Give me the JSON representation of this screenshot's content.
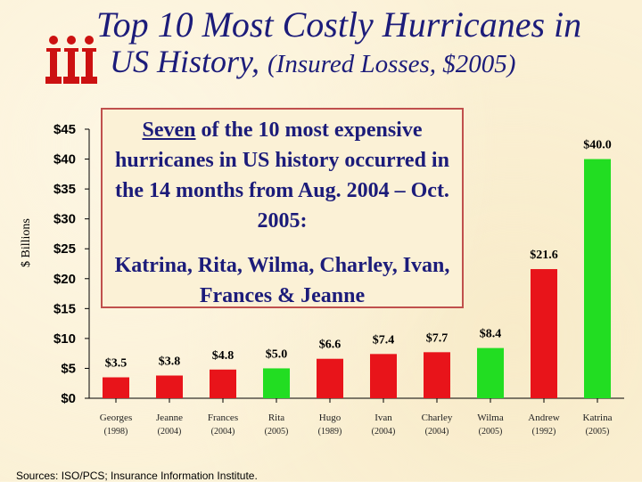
{
  "title": {
    "line1": "Top 10 Most Costly Hurricanes in",
    "line2_main": "US History,",
    "line2_sub": "(Insured Losses, $2005)"
  },
  "callout": {
    "p1_emph": "Seven",
    "p1_rest": " of the 10 most expensive hurricanes in US history occurred in the 14 months from Aug. 2004 – Oct. 2005:",
    "p2": "Katrina, Rita, Wilma, Charley, Ivan, Frances & Jeanne"
  },
  "source": "Sources: ISO/PCS; Insurance Information Institute.",
  "colors": {
    "red": "#e8141a",
    "green": "#22dd22",
    "title": "#1c1c7a",
    "logo": "#cc1111"
  },
  "logo_icon": "iii-logo-icon",
  "chart_data": {
    "type": "bar",
    "ylabel": "$ Billions",
    "ylim": [
      0,
      45
    ],
    "yticks": [
      0,
      5,
      10,
      15,
      20,
      25,
      30,
      35,
      40,
      45
    ],
    "ytick_labels": [
      "$0",
      "$5",
      "$10",
      "$15",
      "$20",
      "$25",
      "$30",
      "$35",
      "$40",
      "$45"
    ],
    "categories": [
      "Georges",
      "Jeanne",
      "Frances",
      "Rita",
      "Hugo",
      "Ivan",
      "Charley",
      "Wilma",
      "Andrew",
      "Katrina"
    ],
    "years": [
      "(1998)",
      "(2004)",
      "(2004)",
      "(2005)",
      "(1989)",
      "(2004)",
      "(2004)",
      "(2005)",
      "(1992)",
      "(2005)"
    ],
    "values": [
      3.5,
      3.8,
      4.8,
      5.0,
      6.6,
      7.4,
      7.7,
      8.4,
      21.6,
      40.0
    ],
    "value_labels": [
      "$3.5",
      "$3.8",
      "$4.8",
      "$5.0",
      "$6.6",
      "$7.4",
      "$7.7",
      "$8.4",
      "$21.6",
      "$40.0"
    ],
    "bar_colors": [
      "red",
      "red",
      "red",
      "green",
      "red",
      "red",
      "red",
      "green",
      "red",
      "green"
    ],
    "grid": false
  }
}
